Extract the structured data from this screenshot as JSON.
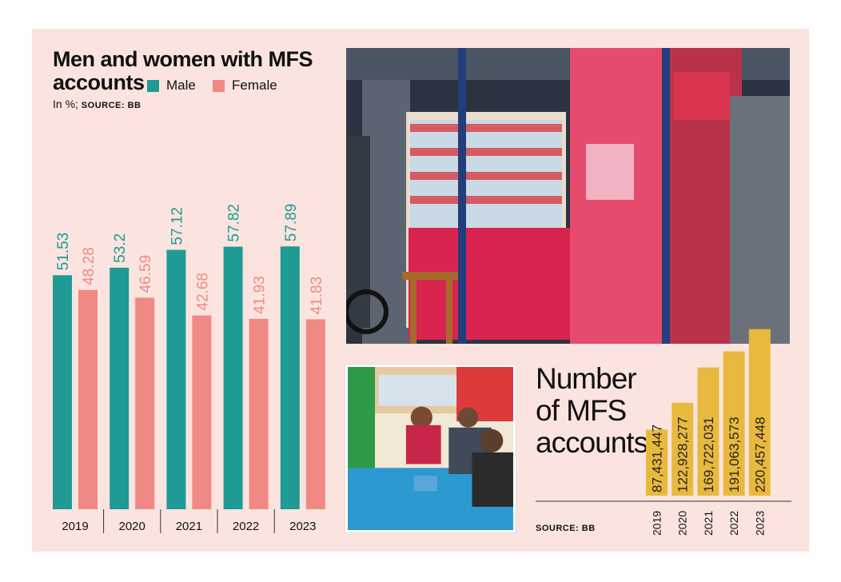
{
  "left": {
    "title_line1": "Men and women with MFS",
    "title_line2": "accounts",
    "subtitle_prefix": "In %; ",
    "subtitle_source": "SOURCE: BB",
    "legend": [
      {
        "label": "Male",
        "color": "#1f9a94"
      },
      {
        "label": "Female",
        "color": "#f08983"
      }
    ]
  },
  "right": {
    "title_line1": "Number",
    "title_line2": "of MFS",
    "title_line3": "accounts",
    "source": "SOURCE: BB"
  },
  "chart_data": [
    {
      "type": "bar",
      "title": "Men and women with MFS accounts",
      "categories": [
        "2019",
        "2020",
        "2021",
        "2022",
        "2023"
      ],
      "series": [
        {
          "name": "Male",
          "color": "#1f9a94",
          "values": [
            51.53,
            53.2,
            57.12,
            57.82,
            57.89
          ],
          "labels": [
            "51.53",
            "53.2",
            "57.12",
            "57.82",
            "57.89"
          ]
        },
        {
          "name": "Female",
          "color": "#f08983",
          "values": [
            48.28,
            46.59,
            42.68,
            41.93,
            41.83
          ],
          "labels": [
            "48.28",
            "46.59",
            "42.68",
            "41.93",
            "41.83"
          ]
        }
      ],
      "ylabel": "In %",
      "ylim": [
        0,
        65
      ]
    },
    {
      "type": "bar",
      "title": "Number of MFS accounts",
      "categories": [
        "2019",
        "2020",
        "2021",
        "2022",
        "2023"
      ],
      "values": [
        87431447,
        122928277,
        169722031,
        191063573,
        220457448
      ],
      "labels": [
        "87,431,447",
        "122,928,277",
        "169,722,031",
        "191,063,573",
        "220,457,448"
      ],
      "color": "#e8b93c"
    }
  ]
}
